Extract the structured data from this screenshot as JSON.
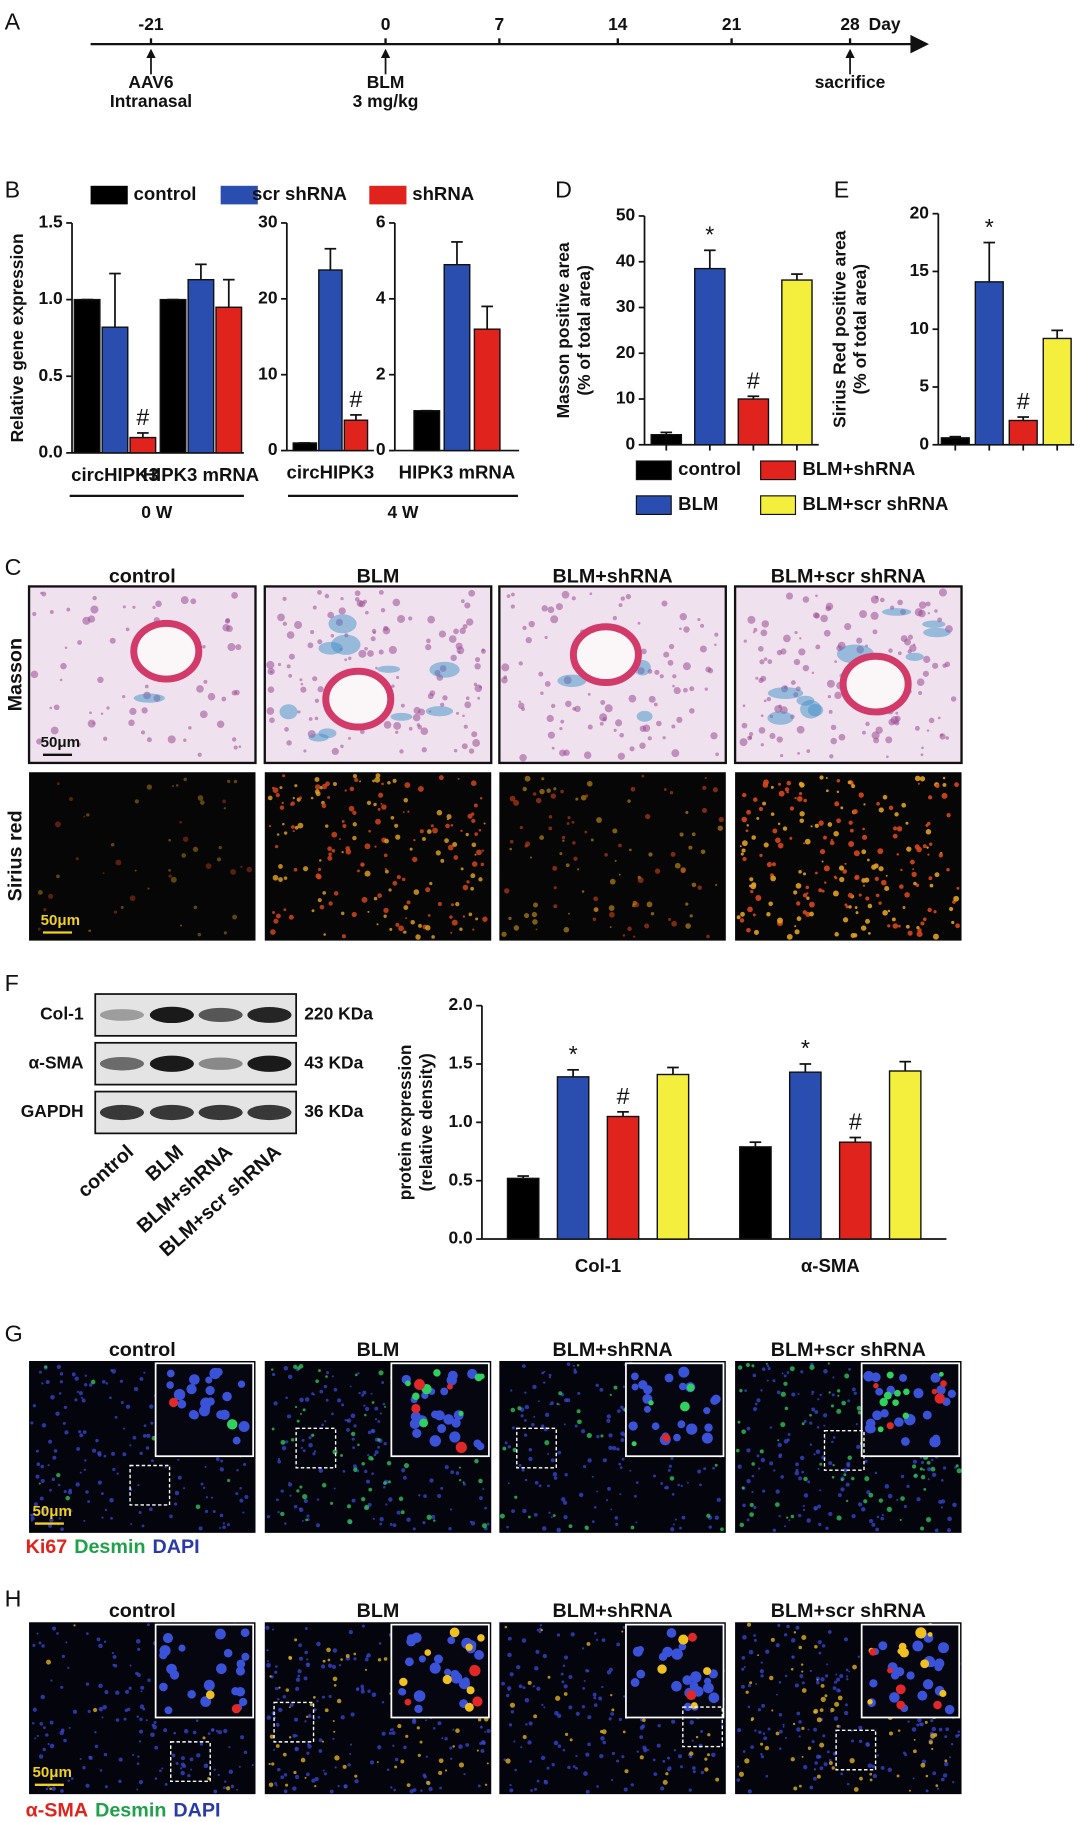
{
  "panels": [
    "A",
    "B",
    "C",
    "D",
    "E",
    "F",
    "G",
    "H"
  ],
  "timeline": {
    "ticks": [
      -21,
      0,
      7,
      14,
      21,
      28
    ],
    "unit": "Day",
    "events": [
      {
        "day": -21,
        "text": [
          "AAV6",
          "Intranasal"
        ]
      },
      {
        "day": 0,
        "text": [
          "BLM",
          "3 mg/kg"
        ]
      },
      {
        "day": 28,
        "text": [
          "sacrifice"
        ]
      }
    ]
  },
  "chart_data": [
    {
      "type": "bar",
      "ylabel": [
        "Relative gene expression"
      ],
      "categories": [
        "circHIPK3",
        "HIPK3 mRNA"
      ],
      "series": [
        {
          "name": "control",
          "color": "#000000",
          "values": [
            1.0,
            1.0
          ],
          "errors": [
            0,
            0
          ]
        },
        {
          "name": "scr shRNA",
          "color": "#2a4db0",
          "values": [
            0.82,
            1.13
          ],
          "errors": [
            0.35,
            0.1
          ]
        },
        {
          "name": "shRNA",
          "color": "#e0231c",
          "values": [
            0.1,
            0.95
          ],
          "errors": [
            0.03,
            0.18
          ],
          "markers": [
            "#",
            null
          ]
        }
      ],
      "ylim": [
        0,
        1.5
      ],
      "yticks": [
        {
          "value": 0,
          "label": "0.0"
        },
        {
          "value": 0.5,
          "label": "0.5"
        },
        {
          "value": 1,
          "label": "1.0"
        },
        {
          "value": 1.5,
          "label": "1.5"
        }
      ],
      "group_label": "0 W"
    },
    {
      "type": "bar",
      "categories": [
        "circHIPK3"
      ],
      "series": [
        {
          "color": "#000000",
          "values": [
            1
          ],
          "errors": [
            0
          ]
        },
        {
          "color": "#2a4db0",
          "values": [
            23.8
          ],
          "errors": [
            2.8
          ]
        },
        {
          "color": "#e0231c",
          "values": [
            4
          ],
          "errors": [
            0.7
          ],
          "markers": [
            "#"
          ]
        }
      ],
      "ylim": [
        0,
        30
      ],
      "yticks": [
        0,
        10,
        20,
        30
      ],
      "group_label": "4 W"
    },
    {
      "type": "bar",
      "categories": [
        "HIPK3 mRNA"
      ],
      "series": [
        {
          "color": "#000000",
          "values": [
            1.05
          ],
          "errors": [
            0
          ]
        },
        {
          "color": "#2a4db0",
          "values": [
            4.9
          ],
          "errors": [
            0.6
          ]
        },
        {
          "color": "#e0231c",
          "values": [
            3.2
          ],
          "errors": [
            0.6
          ]
        }
      ],
      "ylim": [
        0,
        6
      ],
      "yticks": [
        0,
        2,
        4,
        6
      ]
    },
    {
      "type": "bar",
      "ylabel": [
        "Masson positive area",
        "(% of total area)"
      ],
      "legend": [
        "control",
        "BLM",
        "BLM+shRNA",
        "BLM+scr shRNA"
      ],
      "colors": [
        "#000000",
        "#2a4db0",
        "#e0231c",
        "#f4ee3c"
      ],
      "values": [
        2.2,
        38.5,
        10,
        36
      ],
      "errors": [
        0.5,
        4,
        0.6,
        1.3
      ],
      "markers": [
        null,
        "*",
        "#",
        null
      ],
      "ylim": [
        0,
        50
      ],
      "yticks": [
        0,
        10,
        20,
        30,
        40,
        50
      ]
    },
    {
      "type": "bar",
      "ylabel": [
        "Sirius Red positive area",
        "(% of total area)"
      ],
      "colors": [
        "#000000",
        "#2a4db0",
        "#e0231c",
        "#f4ee3c"
      ],
      "values": [
        0.6,
        14.1,
        2.1,
        9.2
      ],
      "errors": [
        0.1,
        3.4,
        0.3,
        0.7
      ],
      "markers": [
        null,
        "*",
        "#",
        null
      ],
      "ylim": [
        0,
        20
      ],
      "yticks": [
        0,
        5,
        10,
        15,
        20
      ]
    },
    {
      "type": "bar",
      "ylabel": [
        "protein expression",
        "(relative density)"
      ],
      "categories": [
        "Col-1",
        "α-SMA"
      ],
      "series": [
        {
          "color": "#000000",
          "values": [
            0.52,
            0.79
          ],
          "errors": [
            0.02,
            0.04
          ]
        },
        {
          "color": "#2a4db0",
          "values": [
            1.39,
            1.43
          ],
          "errors": [
            0.06,
            0.07
          ],
          "markers": [
            "*",
            "*"
          ]
        },
        {
          "color": "#e0231c",
          "values": [
            1.05,
            0.83
          ],
          "errors": [
            0.04,
            0.04
          ],
          "markers": [
            "#",
            "#"
          ]
        },
        {
          "color": "#f4ee3c",
          "values": [
            1.41,
            1.44
          ],
          "errors": [
            0.06,
            0.08
          ]
        }
      ],
      "ylim": [
        0,
        2
      ],
      "yticks": [
        {
          "value": 0,
          "label": "0.0"
        },
        {
          "value": 0.5,
          "label": "0.5"
        },
        {
          "value": 1,
          "label": "1.0"
        },
        {
          "value": 1.5,
          "label": "1.5"
        },
        {
          "value": 2,
          "label": "2.0"
        }
      ]
    }
  ],
  "histology": {
    "columns": [
      "control",
      "BLM",
      "BLM+shRNA",
      "BLM+scr shRNA"
    ],
    "rows": [
      "Masson",
      "Sirius red"
    ],
    "scale_bar": "50μm"
  },
  "western_blot": {
    "rows": [
      {
        "name": "Col-1",
        "size": "220 KDa"
      },
      {
        "name": "α-SMA",
        "size": "43 KDa"
      },
      {
        "name": "GAPDH",
        "size": "36 KDa"
      }
    ],
    "lanes": [
      "control",
      "BLM",
      "BLM+shRNA",
      "BLM+scr shRNA"
    ]
  },
  "immuno": [
    {
      "columns": [
        "control",
        "BLM",
        "BLM+shRNA",
        "BLM+scr shRNA"
      ],
      "scale_bar": "50μm",
      "stain": [
        {
          "text": "Ki67",
          "color": "#e0231c"
        },
        {
          "text": "Desmin",
          "color": "#1fa14a"
        },
        {
          "text": "DAPI",
          "color": "#2a3aa8"
        }
      ]
    },
    {
      "columns": [
        "control",
        "BLM",
        "BLM+shRNA",
        "BLM+scr shRNA"
      ],
      "scale_bar": "50μm",
      "stain": [
        {
          "text": "α-SMA",
          "color": "#e0231c"
        },
        {
          "text": "Desmin",
          "color": "#1fa14a"
        },
        {
          "text": "DAPI",
          "color": "#2a3aa8"
        }
      ]
    }
  ]
}
